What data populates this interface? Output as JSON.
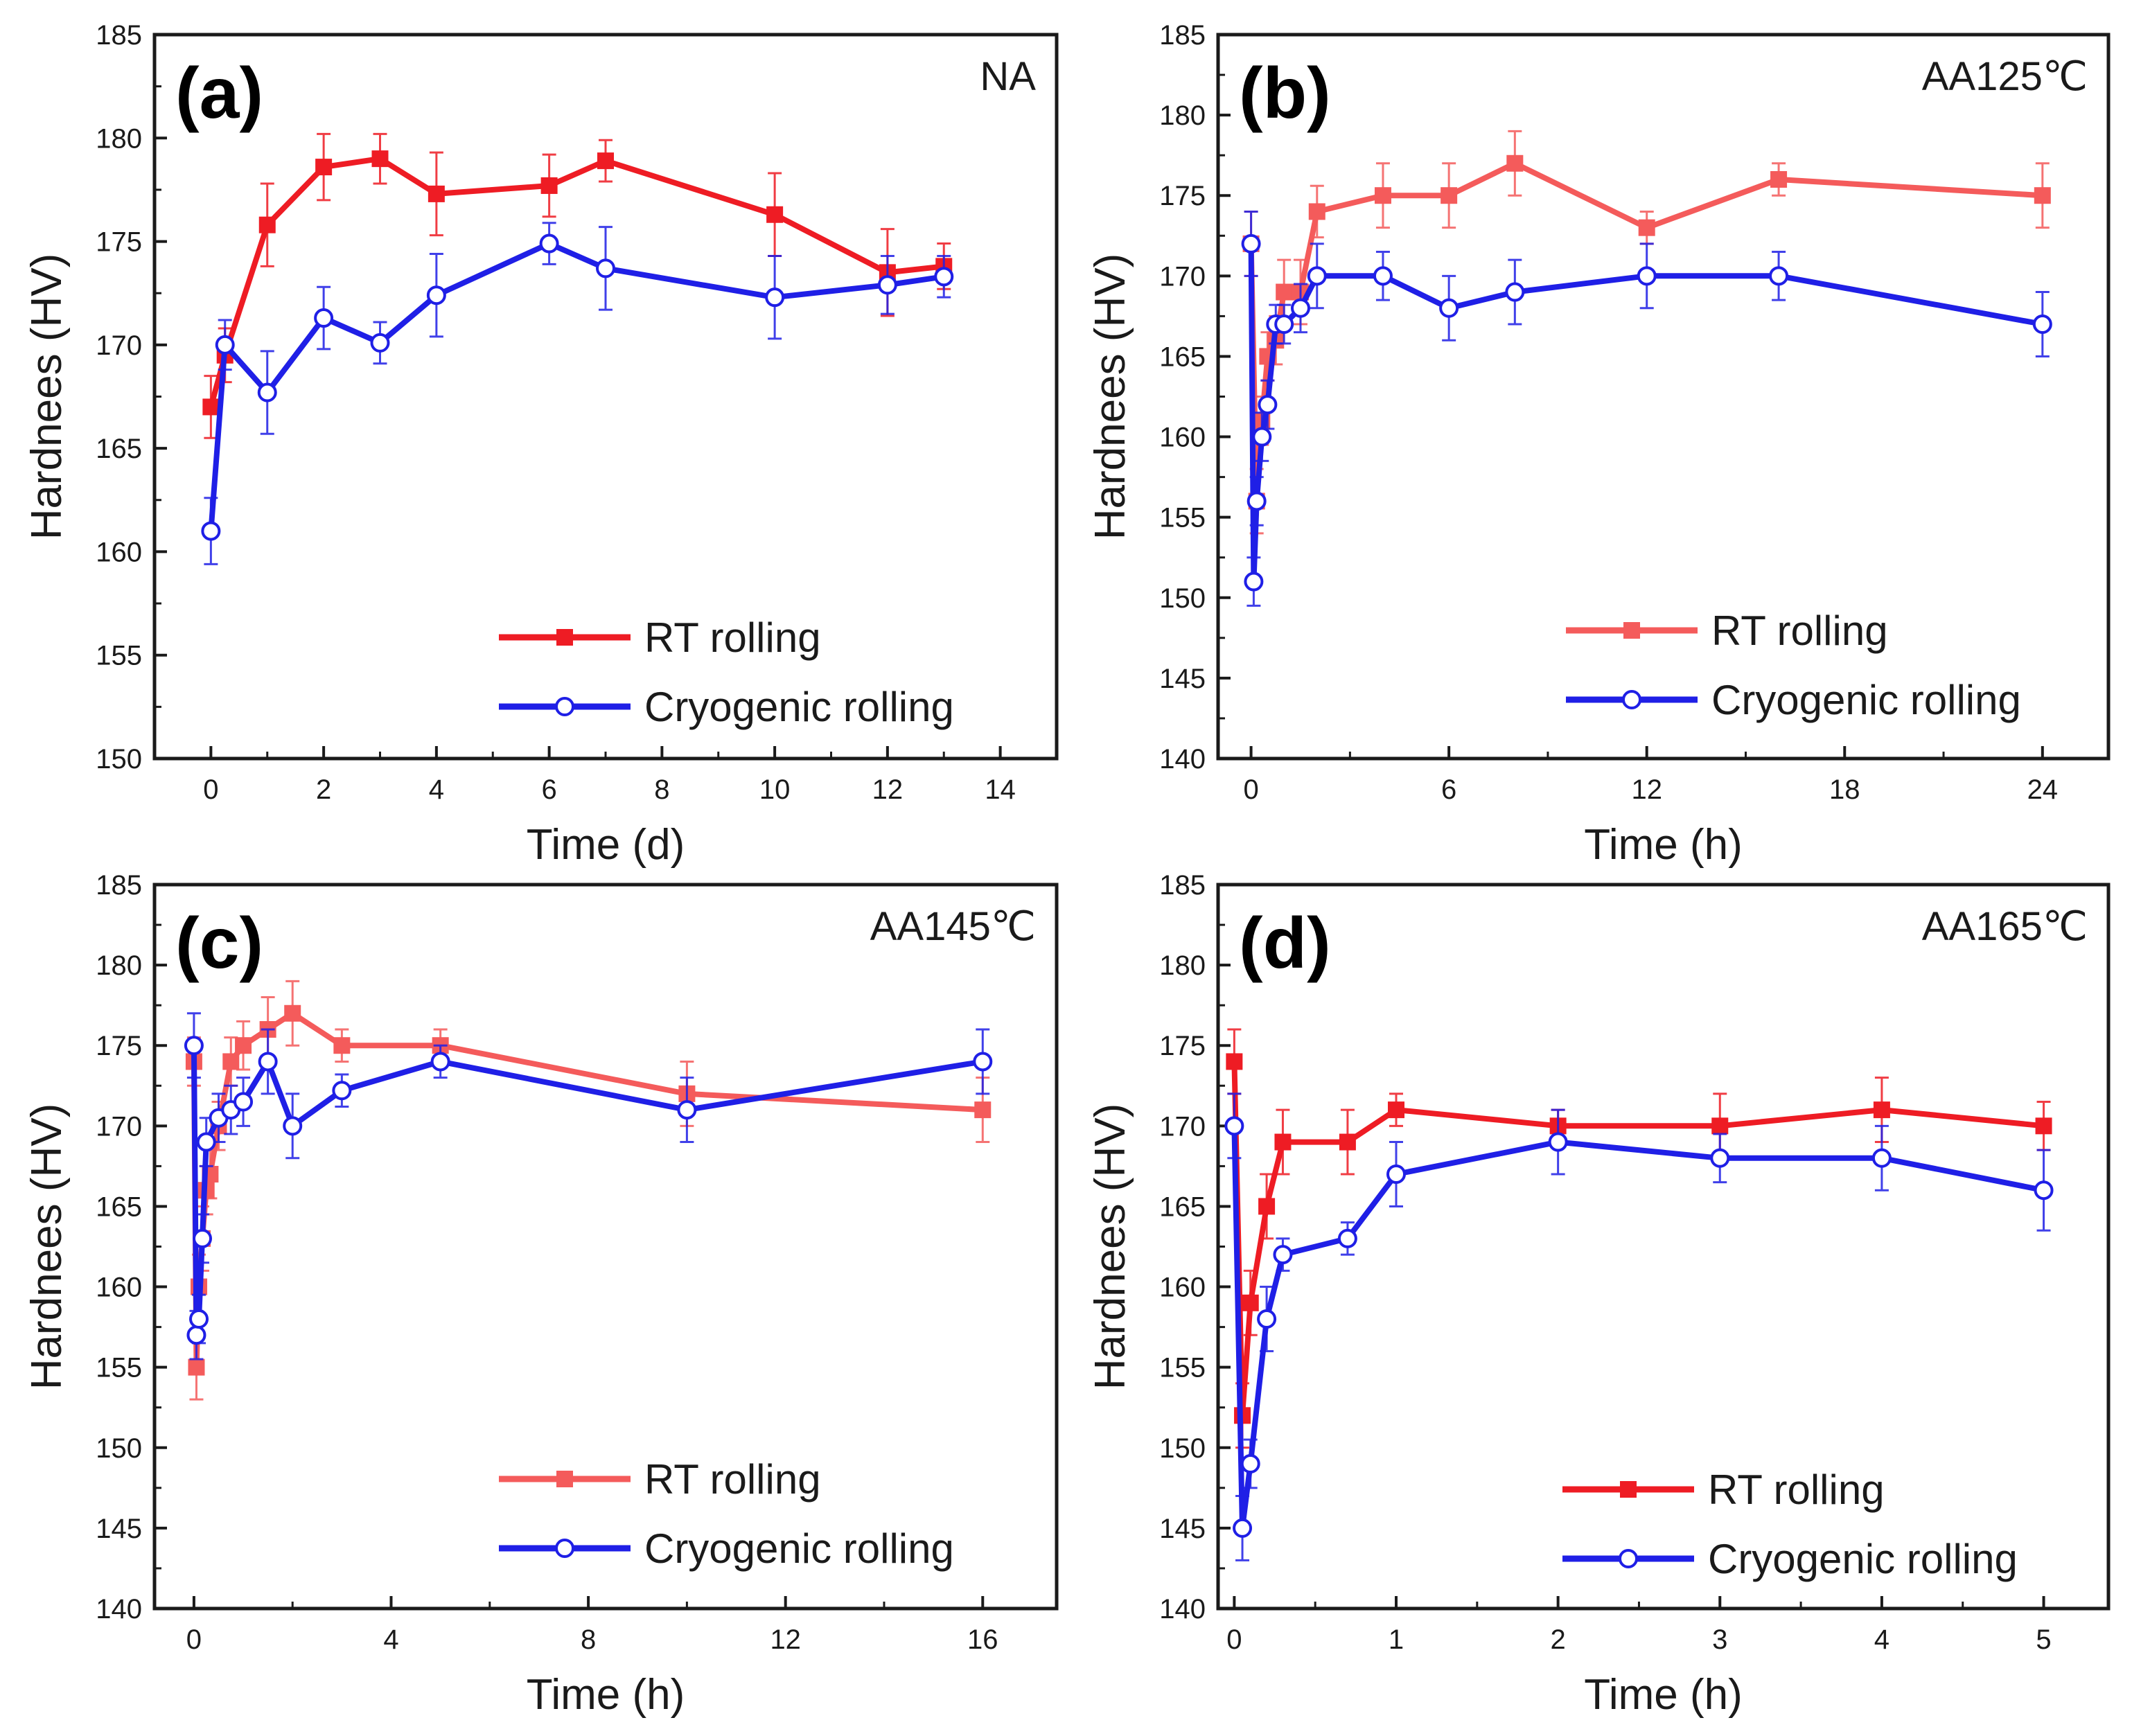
{
  "colors": {
    "rt_strong": "#ee1c24",
    "rt_light": "#f45b5b",
    "cryo": "#1f1fe6",
    "axis": "#1a1a1a"
  },
  "chart_data": [
    {
      "type": "line",
      "panel": "(a)",
      "condition": "NA",
      "xlabel": "Time (d)",
      "ylabel": "Hardnees (HV)",
      "xlim": [
        -1,
        15
      ],
      "ylim": [
        150,
        185
      ],
      "xticks": [
        0,
        2,
        4,
        6,
        8,
        10,
        12,
        14
      ],
      "yticks": [
        150,
        155,
        160,
        165,
        170,
        175,
        180,
        185
      ],
      "legend_position": "bottom-right",
      "series": [
        {
          "name": "RT rolling",
          "style": "rt_strong",
          "marker": "square",
          "x": [
            0,
            0.25,
            1,
            2,
            3,
            4,
            6,
            7,
            10,
            12,
            13
          ],
          "y": [
            167,
            169.5,
            175.8,
            178.6,
            179,
            177.3,
            177.7,
            178.9,
            176.3,
            173.5,
            173.8
          ],
          "err": [
            1.5,
            1.3,
            2,
            1.6,
            1.2,
            2,
            1.5,
            1,
            2,
            2.1,
            1.1
          ]
        },
        {
          "name": "Cryogenic rolling",
          "style": "cryo",
          "marker": "circle",
          "x": [
            0,
            0.25,
            1,
            2,
            3,
            4,
            6,
            7,
            10,
            12,
            13
          ],
          "y": [
            161,
            170,
            167.7,
            171.3,
            170.1,
            172.4,
            174.9,
            173.7,
            172.3,
            172.9,
            173.3
          ],
          "err": [
            1.6,
            1.2,
            2,
            1.5,
            1,
            2,
            1,
            2,
            2,
            1.4,
            1
          ]
        }
      ]
    },
    {
      "type": "line",
      "panel": "(b)",
      "condition": "AA125℃",
      "xlabel": "Time (h)",
      "ylabel": "Hardnees (HV)",
      "xlim": [
        -1,
        26
      ],
      "ylim": [
        140,
        185
      ],
      "xticks": [
        0,
        6,
        12,
        18,
        24
      ],
      "yticks": [
        140,
        145,
        150,
        155,
        160,
        165,
        170,
        175,
        180,
        185
      ],
      "legend_position": "bottom-right",
      "series": [
        {
          "name": "RT rolling",
          "style": "rt_light",
          "marker": "square",
          "x": [
            0,
            0.17,
            0.33,
            0.5,
            0.75,
            1,
            1.5,
            2,
            4,
            6,
            8,
            12,
            16,
            24
          ],
          "y": [
            172,
            156,
            161,
            165,
            166,
            169,
            169,
            174,
            175,
            175,
            177,
            173,
            176,
            175
          ],
          "err": [
            2,
            2,
            1.5,
            1.5,
            1.5,
            2,
            2,
            1.6,
            2,
            2,
            2,
            1,
            1,
            2
          ]
        },
        {
          "name": "Cryogenic rolling",
          "style": "cryo",
          "marker": "circle",
          "x": [
            0,
            0.08,
            0.17,
            0.33,
            0.5,
            0.75,
            1,
            1.5,
            2,
            4,
            6,
            8,
            12,
            16,
            24
          ],
          "y": [
            172,
            151,
            156,
            160,
            162,
            167,
            167,
            168,
            170,
            170,
            168,
            169,
            170,
            170,
            167
          ],
          "err": [
            2,
            1.5,
            1.5,
            1.5,
            1.5,
            1.2,
            1.2,
            1.5,
            2,
            1.5,
            2,
            2,
            2,
            1.5,
            2
          ]
        }
      ]
    },
    {
      "type": "line",
      "panel": "(c)",
      "condition": "AA145℃",
      "xlabel": "Time (h)",
      "ylabel": "Hardnees (HV)",
      "xlim": [
        -0.8,
        17.5
      ],
      "ylim": [
        140,
        185
      ],
      "xticks": [
        0,
        4,
        8,
        12,
        16
      ],
      "yticks": [
        140,
        145,
        150,
        155,
        160,
        165,
        170,
        175,
        180,
        185
      ],
      "legend_position": "bottom-right",
      "series": [
        {
          "name": "RT rolling",
          "style": "rt_light",
          "marker": "square",
          "x": [
            0,
            0.05,
            0.1,
            0.17,
            0.25,
            0.33,
            0.5,
            0.75,
            1,
            1.5,
            2,
            3,
            5,
            10,
            16
          ],
          "y": [
            174,
            155,
            160,
            163,
            166,
            167,
            170,
            174,
            175,
            176,
            177,
            175,
            175,
            172,
            171
          ],
          "err": [
            1.5,
            2,
            2,
            2,
            1.5,
            1.5,
            1.5,
            1.5,
            1.5,
            2,
            2,
            1,
            1,
            2,
            2
          ]
        },
        {
          "name": "Cryogenic rolling",
          "style": "cryo",
          "marker": "circle",
          "x": [
            0,
            0.05,
            0.1,
            0.17,
            0.25,
            0.5,
            0.75,
            1,
            1.5,
            2,
            3,
            5,
            10,
            16
          ],
          "y": [
            175,
            157,
            158,
            163,
            169,
            170.5,
            171,
            171.5,
            174,
            170,
            172.2,
            174,
            171,
            174
          ],
          "err": [
            2,
            1.5,
            1.5,
            1.5,
            1.5,
            1.5,
            1.5,
            1.5,
            2,
            2,
            1,
            1,
            2,
            2
          ]
        }
      ]
    },
    {
      "type": "line",
      "panel": "(d)",
      "condition": "AA165℃",
      "xlabel": "Time (h)",
      "ylabel": "Hardnees (HV)",
      "xlim": [
        -0.1,
        5.4
      ],
      "ylim": [
        140,
        185
      ],
      "xticks": [
        0,
        1,
        2,
        3,
        4,
        5
      ],
      "yticks": [
        140,
        145,
        150,
        155,
        160,
        165,
        170,
        175,
        180,
        185
      ],
      "legend_position": "bottom-right",
      "series": [
        {
          "name": "RT rolling",
          "style": "rt_strong",
          "marker": "square",
          "x": [
            0,
            0.05,
            0.1,
            0.2,
            0.3,
            0.7,
            1,
            2,
            3,
            4,
            5
          ],
          "y": [
            174,
            152,
            159,
            165,
            169,
            169,
            171,
            170,
            170,
            171,
            170
          ],
          "err": [
            2,
            2,
            2,
            2,
            2,
            2,
            1,
            1,
            2,
            2,
            1.5
          ]
        },
        {
          "name": "Cryogenic rolling",
          "style": "cryo",
          "marker": "circle",
          "x": [
            0,
            0.05,
            0.1,
            0.2,
            0.3,
            0.7,
            1,
            2,
            3,
            4,
            5
          ],
          "y": [
            170,
            145,
            149,
            158,
            162,
            163,
            167,
            169,
            168,
            168,
            166
          ],
          "err": [
            2,
            2,
            1.5,
            2,
            1,
            1,
            2,
            2,
            1.5,
            2,
            2.5
          ]
        }
      ]
    }
  ]
}
